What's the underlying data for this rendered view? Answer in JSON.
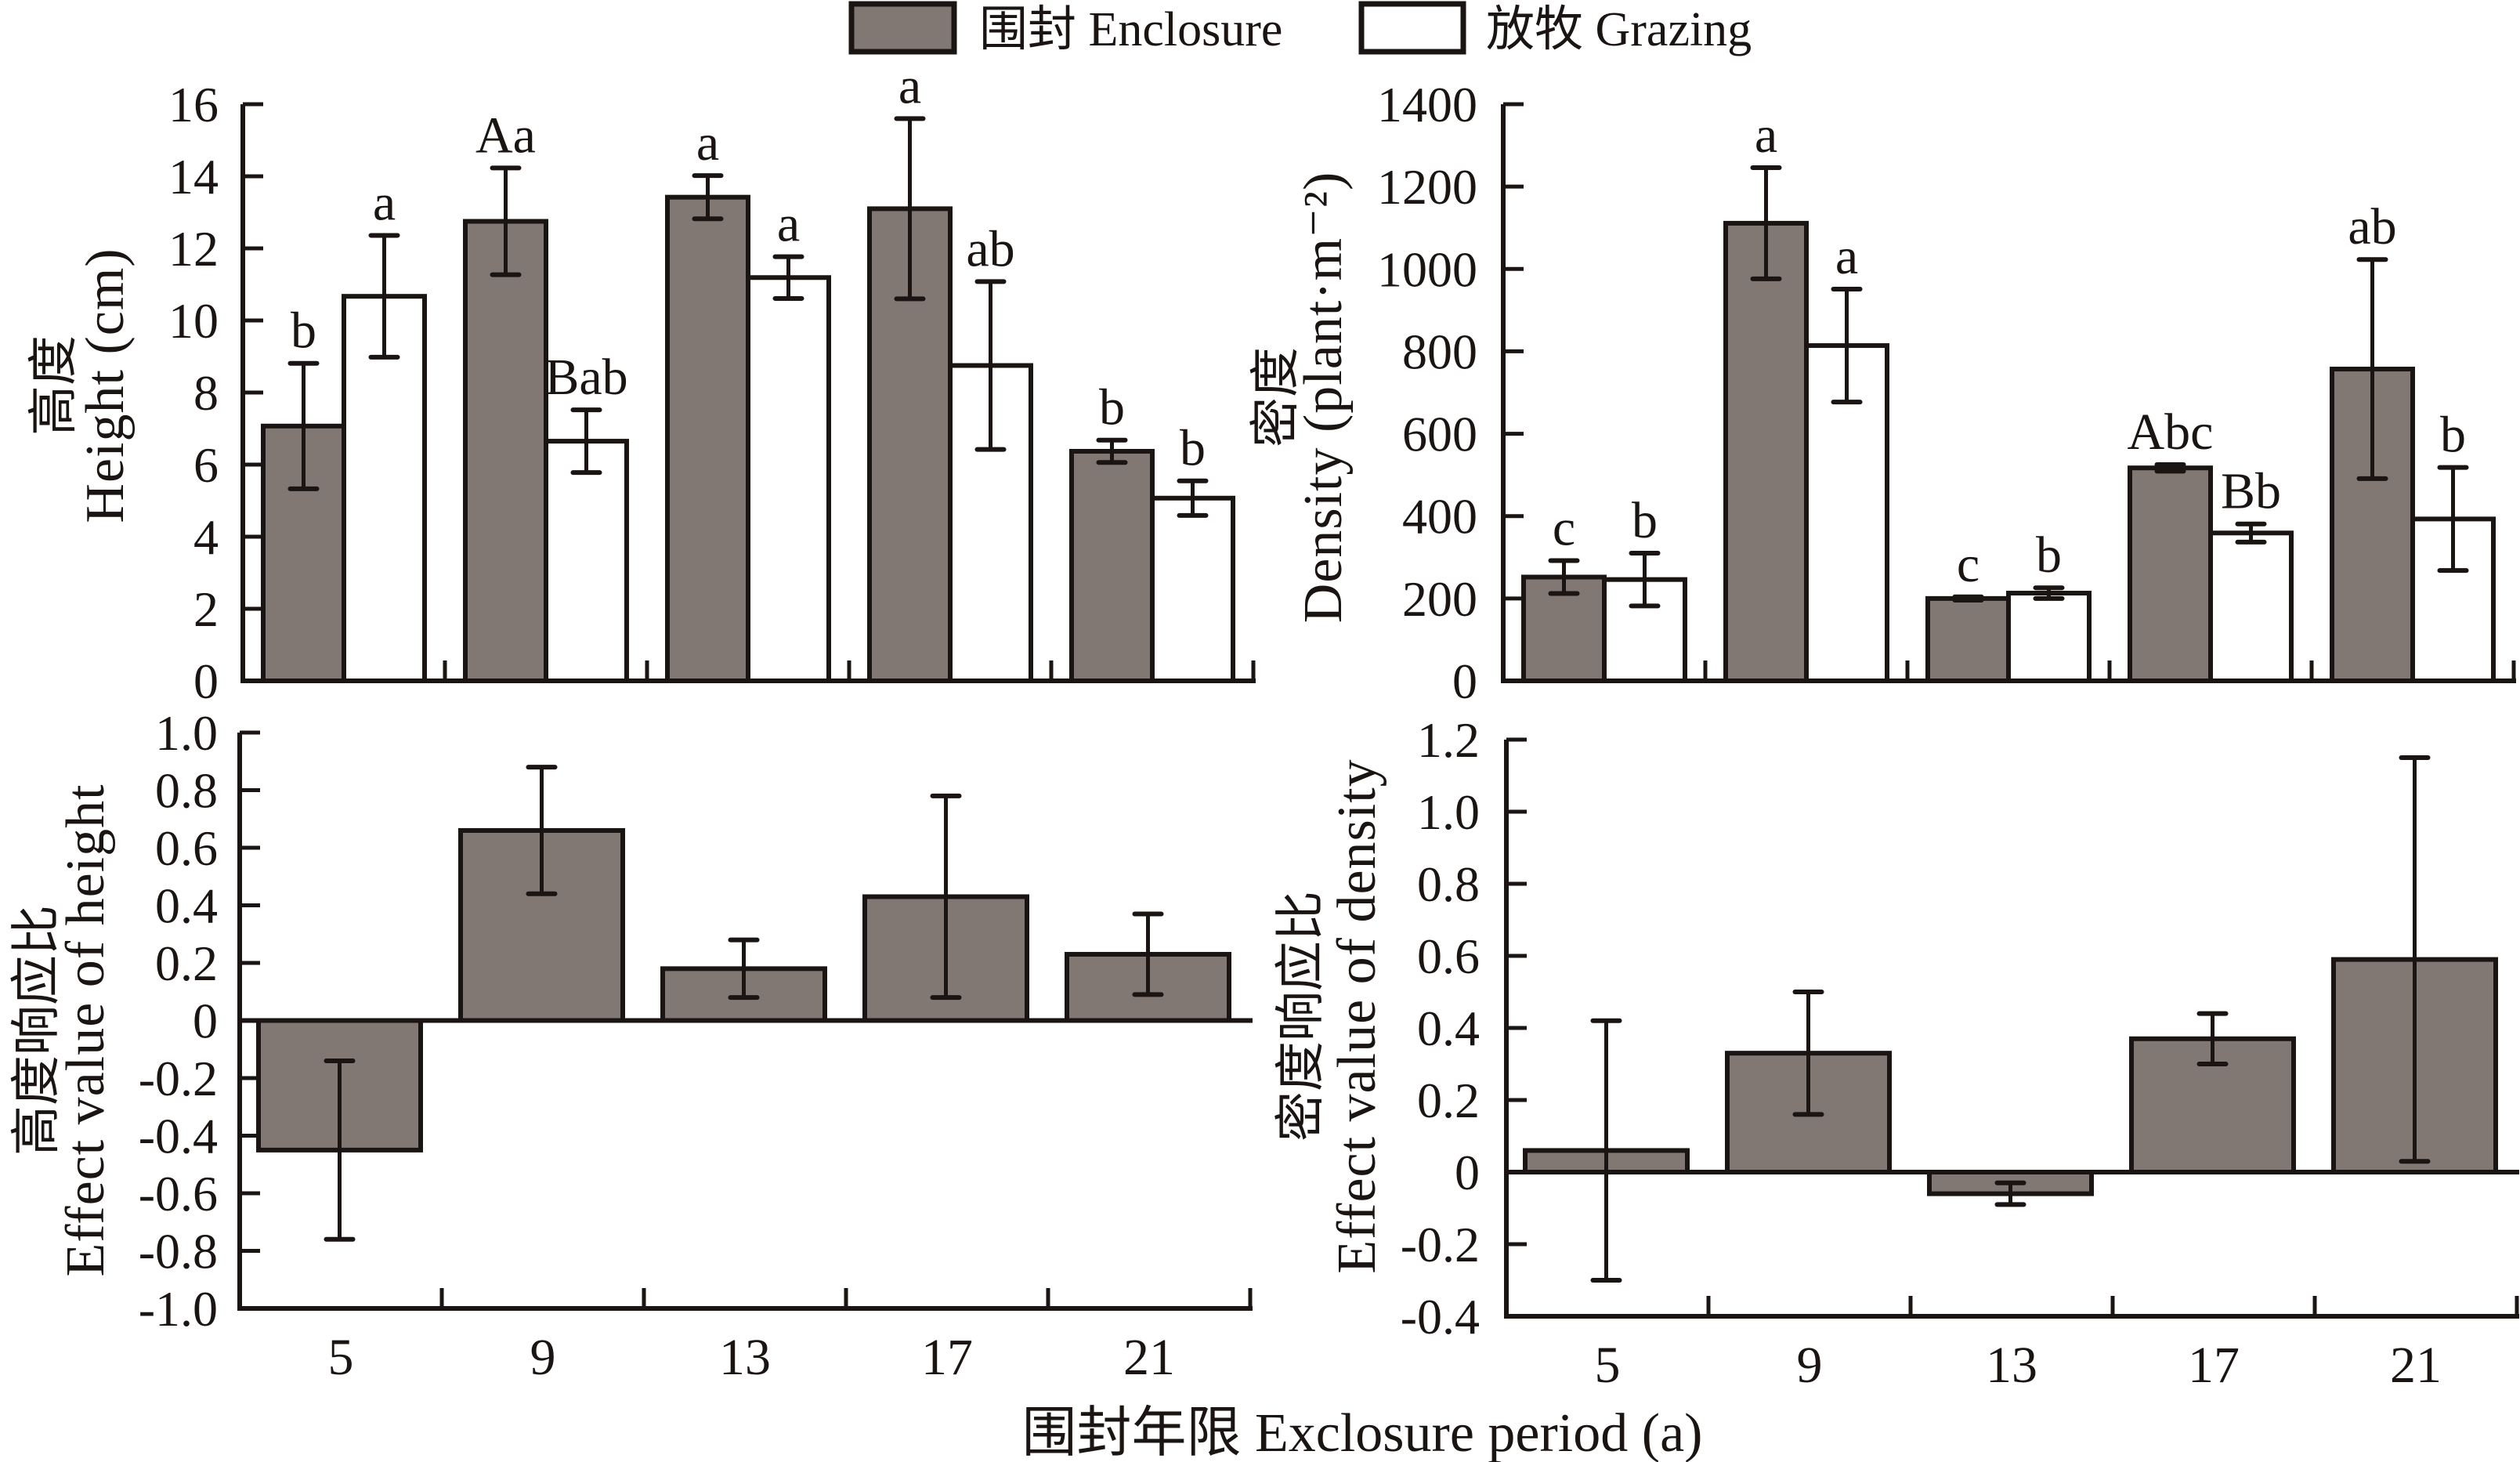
{
  "legend": {
    "position": "top-center",
    "items": [
      {
        "label": "围封 Enclosure",
        "swatch_color": "#817874"
      },
      {
        "label": "放牧 Grazing",
        "swatch_color": "#ffffff"
      }
    ]
  },
  "x_axis_title": "围封年限 Exclosure period (a)",
  "colors": {
    "ink": "#1a1412",
    "enclosure": "#817874",
    "grazing": "#ffffff",
    "background": "#ffffff"
  },
  "chart_data": [
    {
      "type": "bar",
      "title": "",
      "xlabel": "",
      "ylabel": "高度 Height (cm)",
      "ylabel_lines": [
        "高度",
        "Height (cm)"
      ],
      "categories": [
        "5",
        "9",
        "13",
        "17",
        "21"
      ],
      "category_labels_visible": false,
      "ylim": [
        0,
        16
      ],
      "yticks": [
        0,
        2,
        4,
        6,
        8,
        10,
        12,
        14,
        16
      ],
      "ytick_labels": [
        "0",
        "2",
        "4",
        "6",
        "8",
        "10",
        "12",
        "14",
        "16"
      ],
      "grid": false,
      "legend": "top-center",
      "series": [
        {
          "name": "围封 Enclosure",
          "color": "#817874",
          "values": [
            7.07,
            12.75,
            13.42,
            13.1,
            6.37
          ],
          "errors": [
            1.74,
            1.48,
            0.6,
            2.5,
            0.31
          ],
          "letters": [
            "b",
            "Aa",
            "a",
            "a",
            "b"
          ]
        },
        {
          "name": "放牧 Grazing",
          "color": "#ffffff",
          "values": [
            10.67,
            6.65,
            11.19,
            8.75,
            5.07
          ],
          "errors": [
            1.69,
            0.87,
            0.58,
            2.33,
            0.48
          ],
          "letters": [
            "a",
            "Bab",
            "a",
            "ab",
            "b"
          ]
        }
      ]
    },
    {
      "type": "bar",
      "title": "",
      "xlabel": "",
      "ylabel": "密度 Density (plant·m⁻²)",
      "ylabel_lines": [
        "密度",
        "Density (plant·m⁻²)"
      ],
      "categories": [
        "5",
        "9",
        "13",
        "17",
        "21"
      ],
      "category_labels_visible": false,
      "ylim": [
        0,
        1400
      ],
      "yticks": [
        0,
        200,
        400,
        600,
        800,
        1000,
        1200,
        1400
      ],
      "ytick_labels": [
        "0",
        "200",
        "400",
        "600",
        "800",
        "1000",
        "1200",
        "1400"
      ],
      "grid": false,
      "legend": "top-center",
      "series": [
        {
          "name": "围封 Enclosure",
          "color": "#817874",
          "values": [
            252,
            1111,
            200,
            517,
            757
          ],
          "errors": [
            40,
            135,
            4,
            8,
            266
          ],
          "letters": [
            "c",
            "a",
            "c",
            "Abc",
            "ab"
          ]
        },
        {
          "name": "放牧 Grazing",
          "color": "#ffffff",
          "values": [
            246,
            814,
            213,
            359,
            393
          ],
          "errors": [
            64,
            137,
            13,
            22,
            125
          ],
          "letters": [
            "b",
            "a",
            "b",
            "Bb",
            "b"
          ]
        }
      ]
    },
    {
      "type": "bar",
      "title": "",
      "xlabel": "围封年限 Exclosure period (a)",
      "ylabel": "高度响应比 Effect value of height",
      "ylabel_lines": [
        "高度响应比",
        "Effect value of height"
      ],
      "categories": [
        "5",
        "9",
        "13",
        "17",
        "21"
      ],
      "category_labels_visible": true,
      "ylim": [
        -1.0,
        1.0
      ],
      "yticks": [
        -1.0,
        -0.8,
        -0.6,
        -0.4,
        -0.2,
        0,
        0.2,
        0.4,
        0.6,
        0.8,
        1.0
      ],
      "ytick_labels": [
        "-1.0",
        "-0.8",
        "-0.6",
        "-0.4",
        "-0.2",
        "0",
        "0.2",
        "0.4",
        "0.6",
        "0.8",
        "1.0"
      ],
      "grid": false,
      "series": [
        {
          "name": "Effect value of height",
          "color": "#817874",
          "values": [
            -0.45,
            0.66,
            0.18,
            0.43,
            0.23
          ],
          "errors": [
            0.31,
            0.22,
            0.1,
            0.35,
            0.14
          ]
        }
      ]
    },
    {
      "type": "bar",
      "title": "",
      "xlabel": "围封年限 Exclosure period (a)",
      "ylabel": "密度响应比 Effect value of density",
      "ylabel_lines": [
        "密度响应比",
        "Effect value of density"
      ],
      "categories": [
        "5",
        "9",
        "13",
        "17",
        "21"
      ],
      "category_labels_visible": true,
      "ylim": [
        -0.4,
        1.2
      ],
      "yticks": [
        -0.4,
        -0.2,
        0,
        0.2,
        0.4,
        0.6,
        0.8,
        1.0,
        1.2
      ],
      "ytick_labels": [
        "-0.4",
        "-0.2",
        "0",
        "0.2",
        "0.4",
        "0.6",
        "0.8",
        "1.0",
        "1.2"
      ],
      "grid": false,
      "series": [
        {
          "name": "Effect value of density",
          "color": "#817874",
          "values": [
            0.06,
            0.33,
            -0.06,
            0.37,
            0.59
          ],
          "errors": [
            0.36,
            0.17,
            0.03,
            0.07,
            0.56
          ]
        }
      ]
    }
  ]
}
